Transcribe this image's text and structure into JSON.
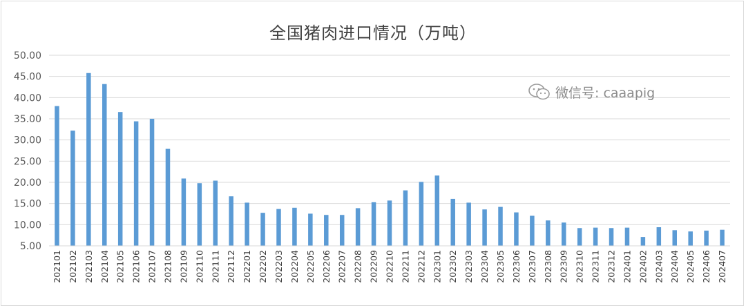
{
  "chart_data": {
    "type": "bar",
    "title": "全国猪肉进口情况（万吨）",
    "categories": [
      "202101",
      "202102",
      "202103",
      "202104",
      "202105",
      "202106",
      "202107",
      "202108",
      "202109",
      "202110",
      "202111",
      "202112",
      "202201",
      "202202",
      "202203",
      "202204",
      "202205",
      "202206",
      "202207",
      "202208",
      "202209",
      "202210",
      "202211",
      "202212",
      "202301",
      "202302",
      "202303",
      "202304",
      "202305",
      "202306",
      "202307",
      "202308",
      "202309",
      "202310",
      "202311",
      "202312",
      "202401",
      "202402",
      "202403",
      "202404",
      "202405",
      "202406",
      "202407"
    ],
    "values": [
      38.0,
      32.2,
      45.8,
      43.2,
      36.6,
      34.4,
      35.0,
      27.9,
      20.9,
      19.8,
      20.4,
      16.7,
      15.2,
      12.8,
      13.7,
      14.0,
      12.6,
      12.3,
      12.3,
      13.9,
      15.3,
      15.7,
      18.1,
      20.1,
      21.6,
      16.1,
      15.2,
      13.6,
      14.2,
      12.9,
      12.1,
      11.0,
      10.5,
      9.2,
      9.3,
      9.2,
      9.3,
      7.1,
      9.4,
      8.7,
      8.4,
      8.6,
      8.8
    ],
    "yticks": [
      "5.00",
      "10.00",
      "15.00",
      "20.00",
      "25.00",
      "30.00",
      "35.00",
      "40.00",
      "45.00",
      "50.00"
    ],
    "ylim": [
      5,
      50
    ],
    "grid": true,
    "legend": false,
    "bar_color": "#5b9bd5",
    "grid_color": "#d9d9d9"
  },
  "watermark": {
    "text": "微信号: caaapig",
    "icon": "wechat-icon"
  }
}
